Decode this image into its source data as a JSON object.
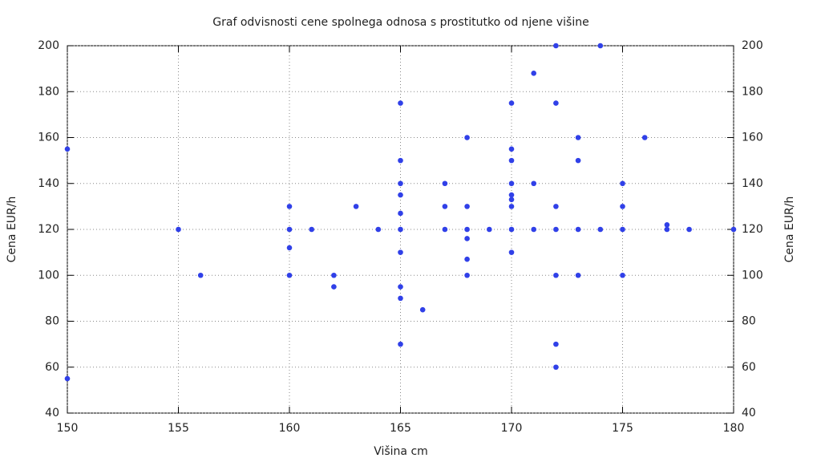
{
  "chart_data": {
    "type": "scatter",
    "title": "Graf odvisnosti cene spolnega odnosa s prostitutko od njene višine",
    "x_label": "Višina cm",
    "y_label": "Cena EUR/h",
    "y2_label": "Cena EUR/h",
    "xlim": [
      150,
      180
    ],
    "xticks": [
      150,
      155,
      160,
      165,
      170,
      175,
      180
    ],
    "ylim": [
      40,
      200
    ],
    "yticks": [
      40,
      60,
      80,
      100,
      120,
      140,
      160,
      180,
      200
    ],
    "y2lim": [
      40,
      200
    ],
    "y2ticks": [
      40,
      60,
      80,
      100,
      120,
      140,
      160,
      180,
      200
    ],
    "grid": true,
    "series": [
      {
        "color": "#3040e8",
        "x": [
          150,
          150,
          155,
          156,
          160,
          160,
          160,
          160,
          161,
          162,
          162,
          163,
          164,
          165,
          165,
          165,
          165,
          165,
          165,
          165,
          165,
          165,
          165,
          166,
          167,
          167,
          167,
          168,
          168,
          168,
          168,
          168,
          168,
          169,
          170,
          170,
          170,
          170,
          170,
          170,
          170,
          170,
          170,
          171,
          171,
          171,
          172,
          172,
          172,
          172,
          172,
          172,
          172,
          173,
          173,
          173,
          173,
          174,
          174,
          175,
          175,
          175,
          175,
          176,
          177,
          177,
          178,
          180
        ],
        "values": [
          155,
          55,
          120,
          100,
          130,
          120,
          112,
          100,
          120,
          100,
          95,
          130,
          120,
          175,
          150,
          140,
          135,
          127,
          120,
          110,
          95,
          90,
          70,
          85,
          140,
          130,
          120,
          160,
          130,
          120,
          116,
          107,
          100,
          120,
          175,
          155,
          150,
          140,
          135,
          133,
          130,
          120,
          110,
          188,
          140,
          120,
          200,
          175,
          130,
          120,
          100,
          70,
          60,
          160,
          150,
          120,
          100,
          200,
          120,
          140,
          130,
          120,
          100,
          160,
          122,
          120,
          120,
          120
        ]
      }
    ]
  }
}
